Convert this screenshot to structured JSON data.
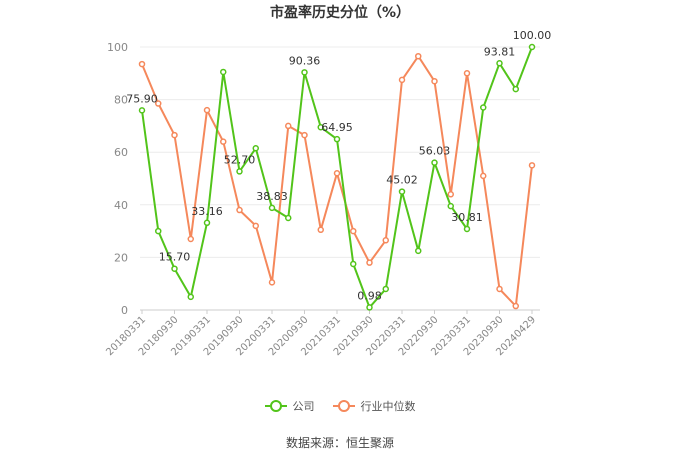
{
  "chart_data": {
    "type": "line",
    "title": "市盈率历史分位（%）",
    "xlabel": "",
    "ylabel": "",
    "ylim": [
      0,
      100
    ],
    "yticks": [
      0,
      20,
      40,
      60,
      80,
      100
    ],
    "grid": true,
    "legend_position": "bottom",
    "xticks": [
      "20180331",
      "20180930",
      "20190331",
      "20190930",
      "20200331",
      "20200930",
      "20210331",
      "20210930",
      "20220331",
      "20220930",
      "20230331",
      "20230930",
      "20240429"
    ],
    "x": [
      "20180331",
      "20180630",
      "20180930",
      "20181231",
      "20190331",
      "20190630",
      "20190930",
      "20191231",
      "20200331",
      "20200630",
      "20200930",
      "20201231",
      "20210331",
      "20210630",
      "20210930",
      "20211231",
      "20220331",
      "20220630",
      "20220930",
      "20221231",
      "20230331",
      "20230630",
      "20230930",
      "20231231",
      "20240429"
    ],
    "series": [
      {
        "name": "公司",
        "color": "#52c41a",
        "values": [
          75.9,
          30,
          15.7,
          5,
          33.16,
          90.5,
          52.7,
          61.5,
          38.83,
          35,
          90.36,
          69.5,
          64.95,
          17.5,
          0.98,
          8,
          45.02,
          22.5,
          56.03,
          39.5,
          30.81,
          77,
          93.81,
          84,
          100.0
        ],
        "labels": {
          "0": "75.90",
          "2": "15.70",
          "4": "33.16",
          "6": "52.70",
          "8": "38.83",
          "10": "90.36",
          "12": "64.95",
          "14": "0.98",
          "16": "45.02",
          "18": "56.03",
          "20": "30.81",
          "22": "93.81",
          "24": "100.00"
        }
      },
      {
        "name": "行业中位数",
        "color": "#f5885b",
        "values": [
          93.5,
          78.5,
          66.5,
          27,
          76,
          64,
          38,
          32,
          10.5,
          70,
          66.5,
          30.5,
          52,
          30,
          18,
          26.5,
          87.5,
          96.5,
          87,
          44,
          90,
          51,
          8,
          1.5,
          55
        ]
      }
    ]
  },
  "source_text": "数据来源：恒生聚源"
}
